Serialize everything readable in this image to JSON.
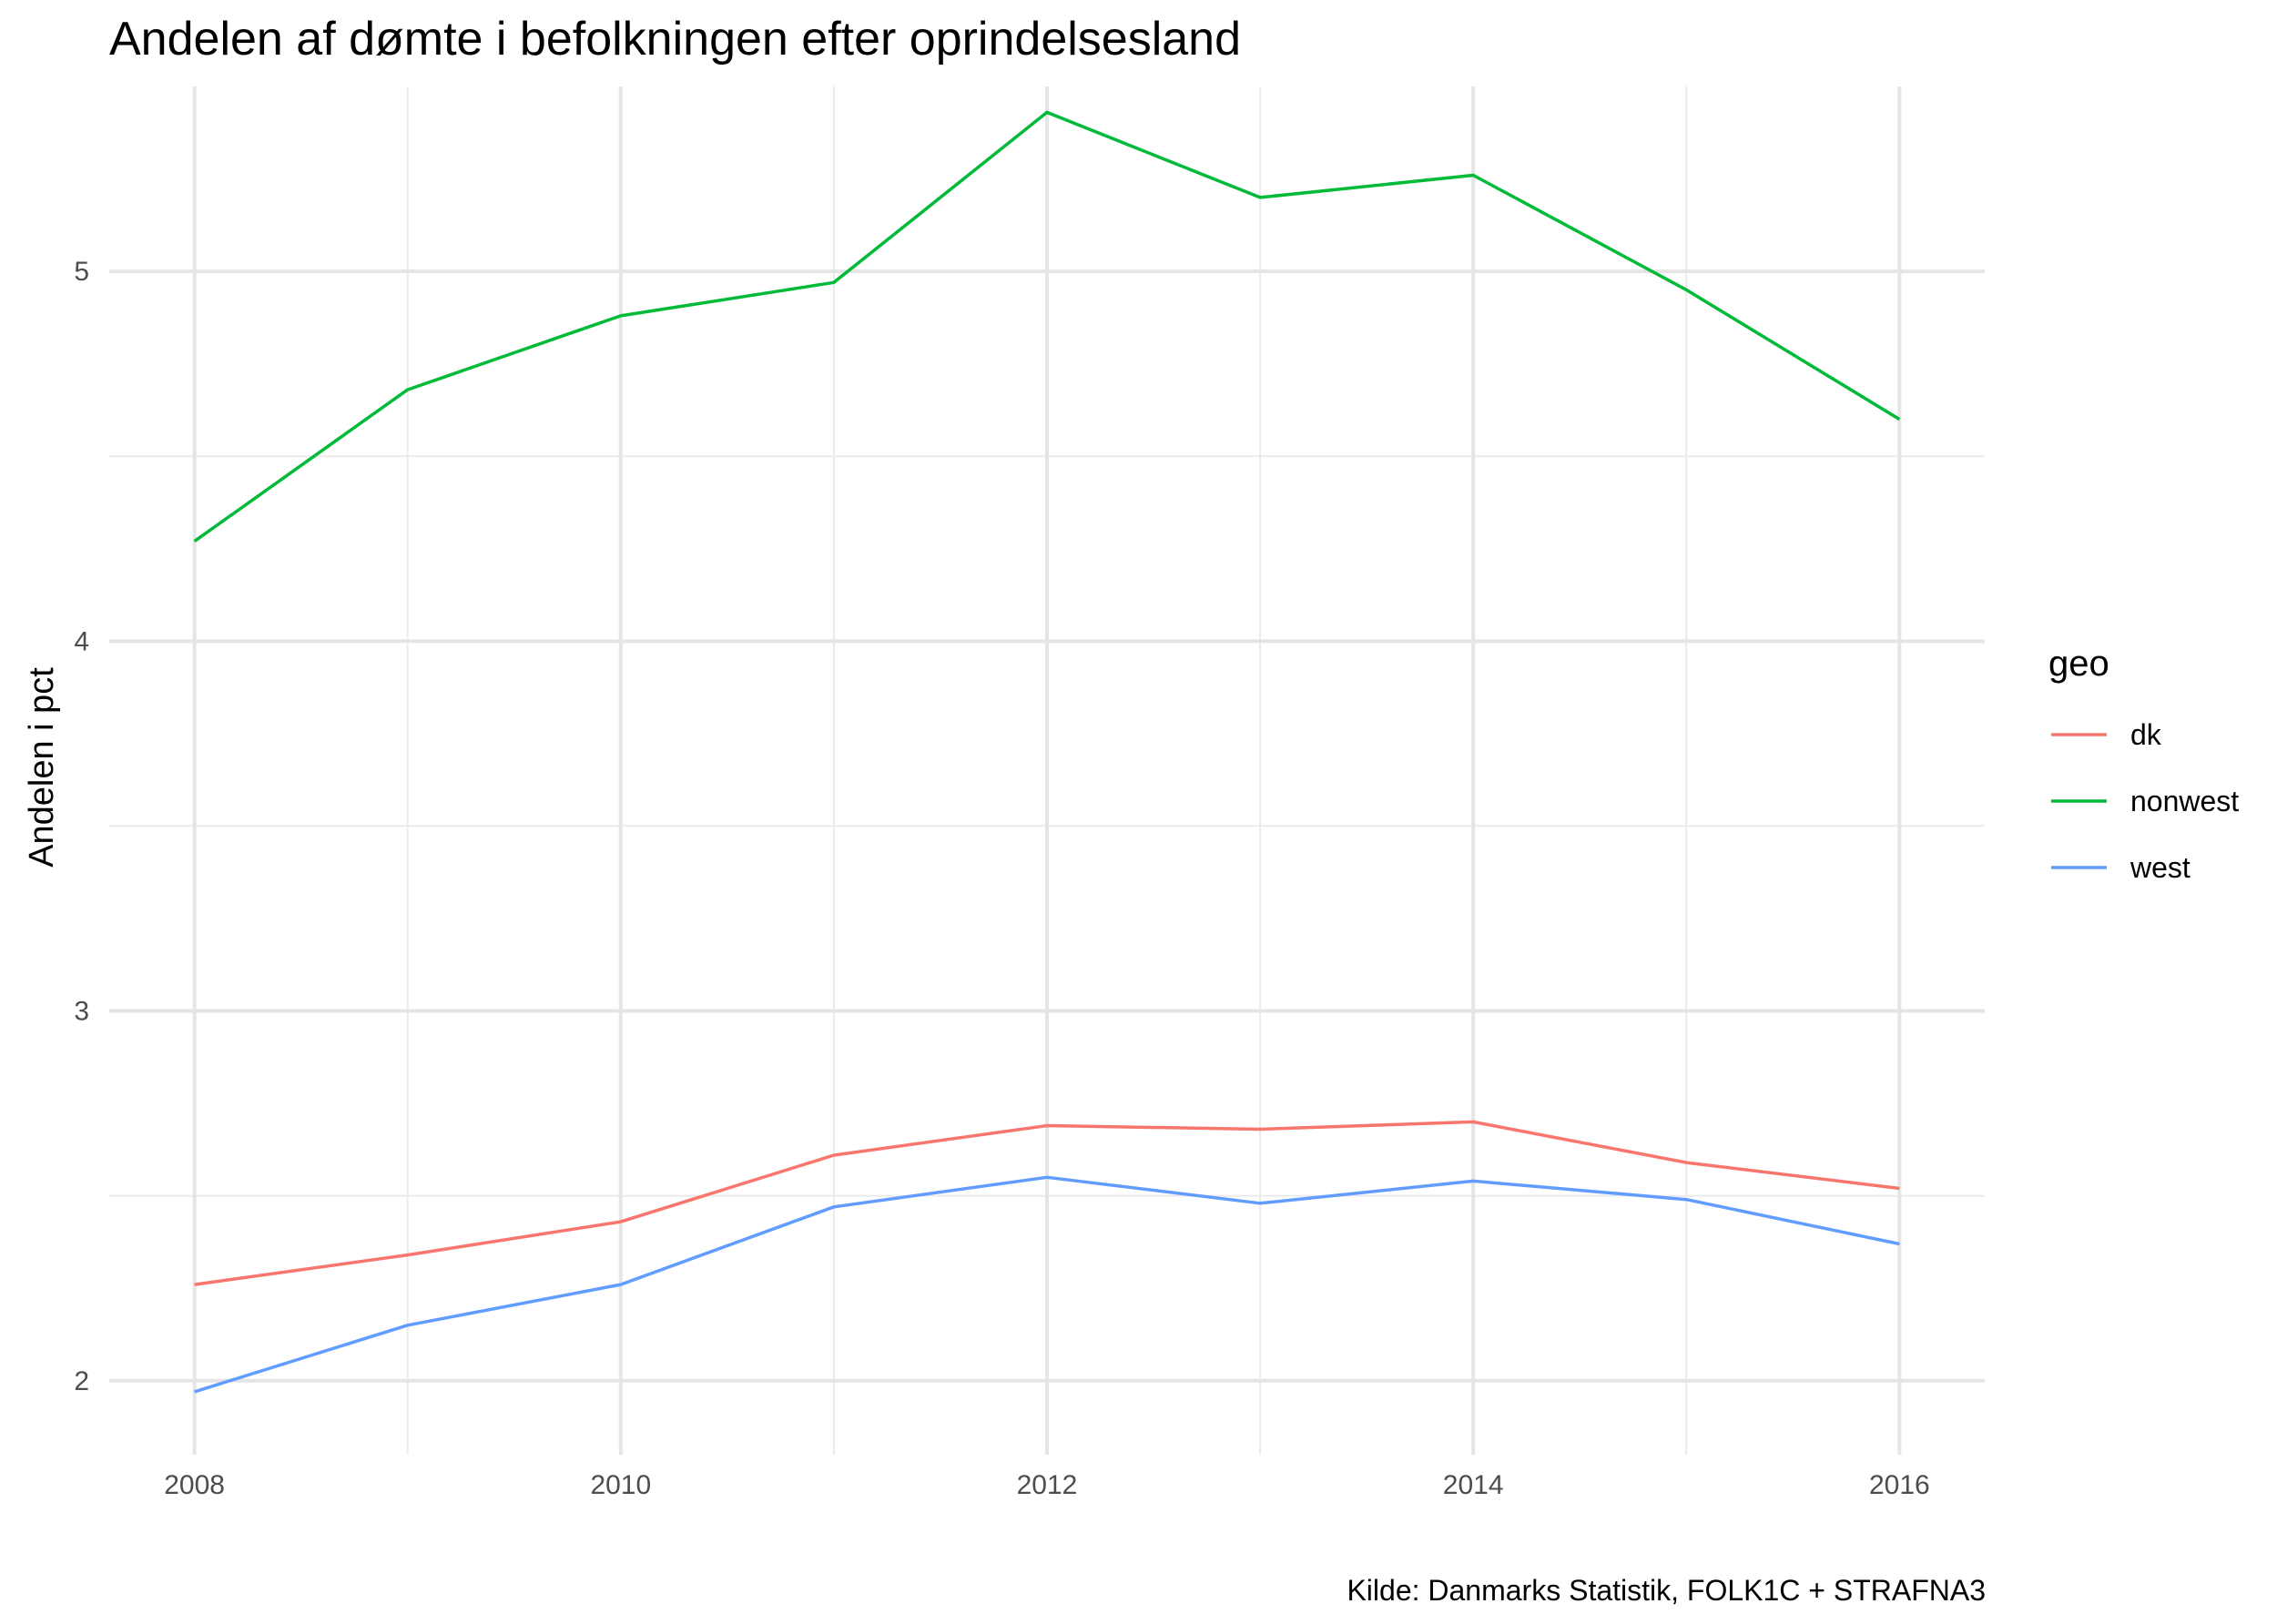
{
  "chart_data": {
    "type": "line",
    "title": "Andelen af dømte i befolkningen efter oprindelsesland",
    "xlabel": "",
    "ylabel": "Andelen i pct",
    "caption": "Kilde: Danmarks Statistik, FOLK1C + STRAFNA3",
    "x": [
      2008,
      2009,
      2010,
      2011,
      2012,
      2013,
      2014,
      2015,
      2016
    ],
    "xlim": [
      2007.6,
      2016.4
    ],
    "ylim": [
      1.8,
      5.5
    ],
    "x_ticks": [
      2008,
      2010,
      2012,
      2014,
      2016
    ],
    "x_tick_labels": [
      "2008",
      "2010",
      "2012",
      "2014",
      "2016"
    ],
    "y_ticks": [
      2,
      3,
      4,
      5
    ],
    "y_tick_labels": [
      "2",
      "3",
      "4",
      "5"
    ],
    "grid": true,
    "legend": {
      "title": "geo",
      "position": "right"
    },
    "series": [
      {
        "name": "dk",
        "color": "#F8766D",
        "values": [
          2.26,
          2.34,
          2.43,
          2.61,
          2.69,
          2.68,
          2.7,
          2.59,
          2.52
        ]
      },
      {
        "name": "nonwest",
        "color": "#00BA38",
        "values": [
          4.27,
          4.68,
          4.88,
          4.97,
          5.43,
          5.2,
          5.26,
          4.95,
          4.6
        ]
      },
      {
        "name": "west",
        "color": "#619CFF",
        "values": [
          1.97,
          2.15,
          2.26,
          2.47,
          2.55,
          2.48,
          2.54,
          2.49,
          2.37
        ]
      }
    ]
  }
}
